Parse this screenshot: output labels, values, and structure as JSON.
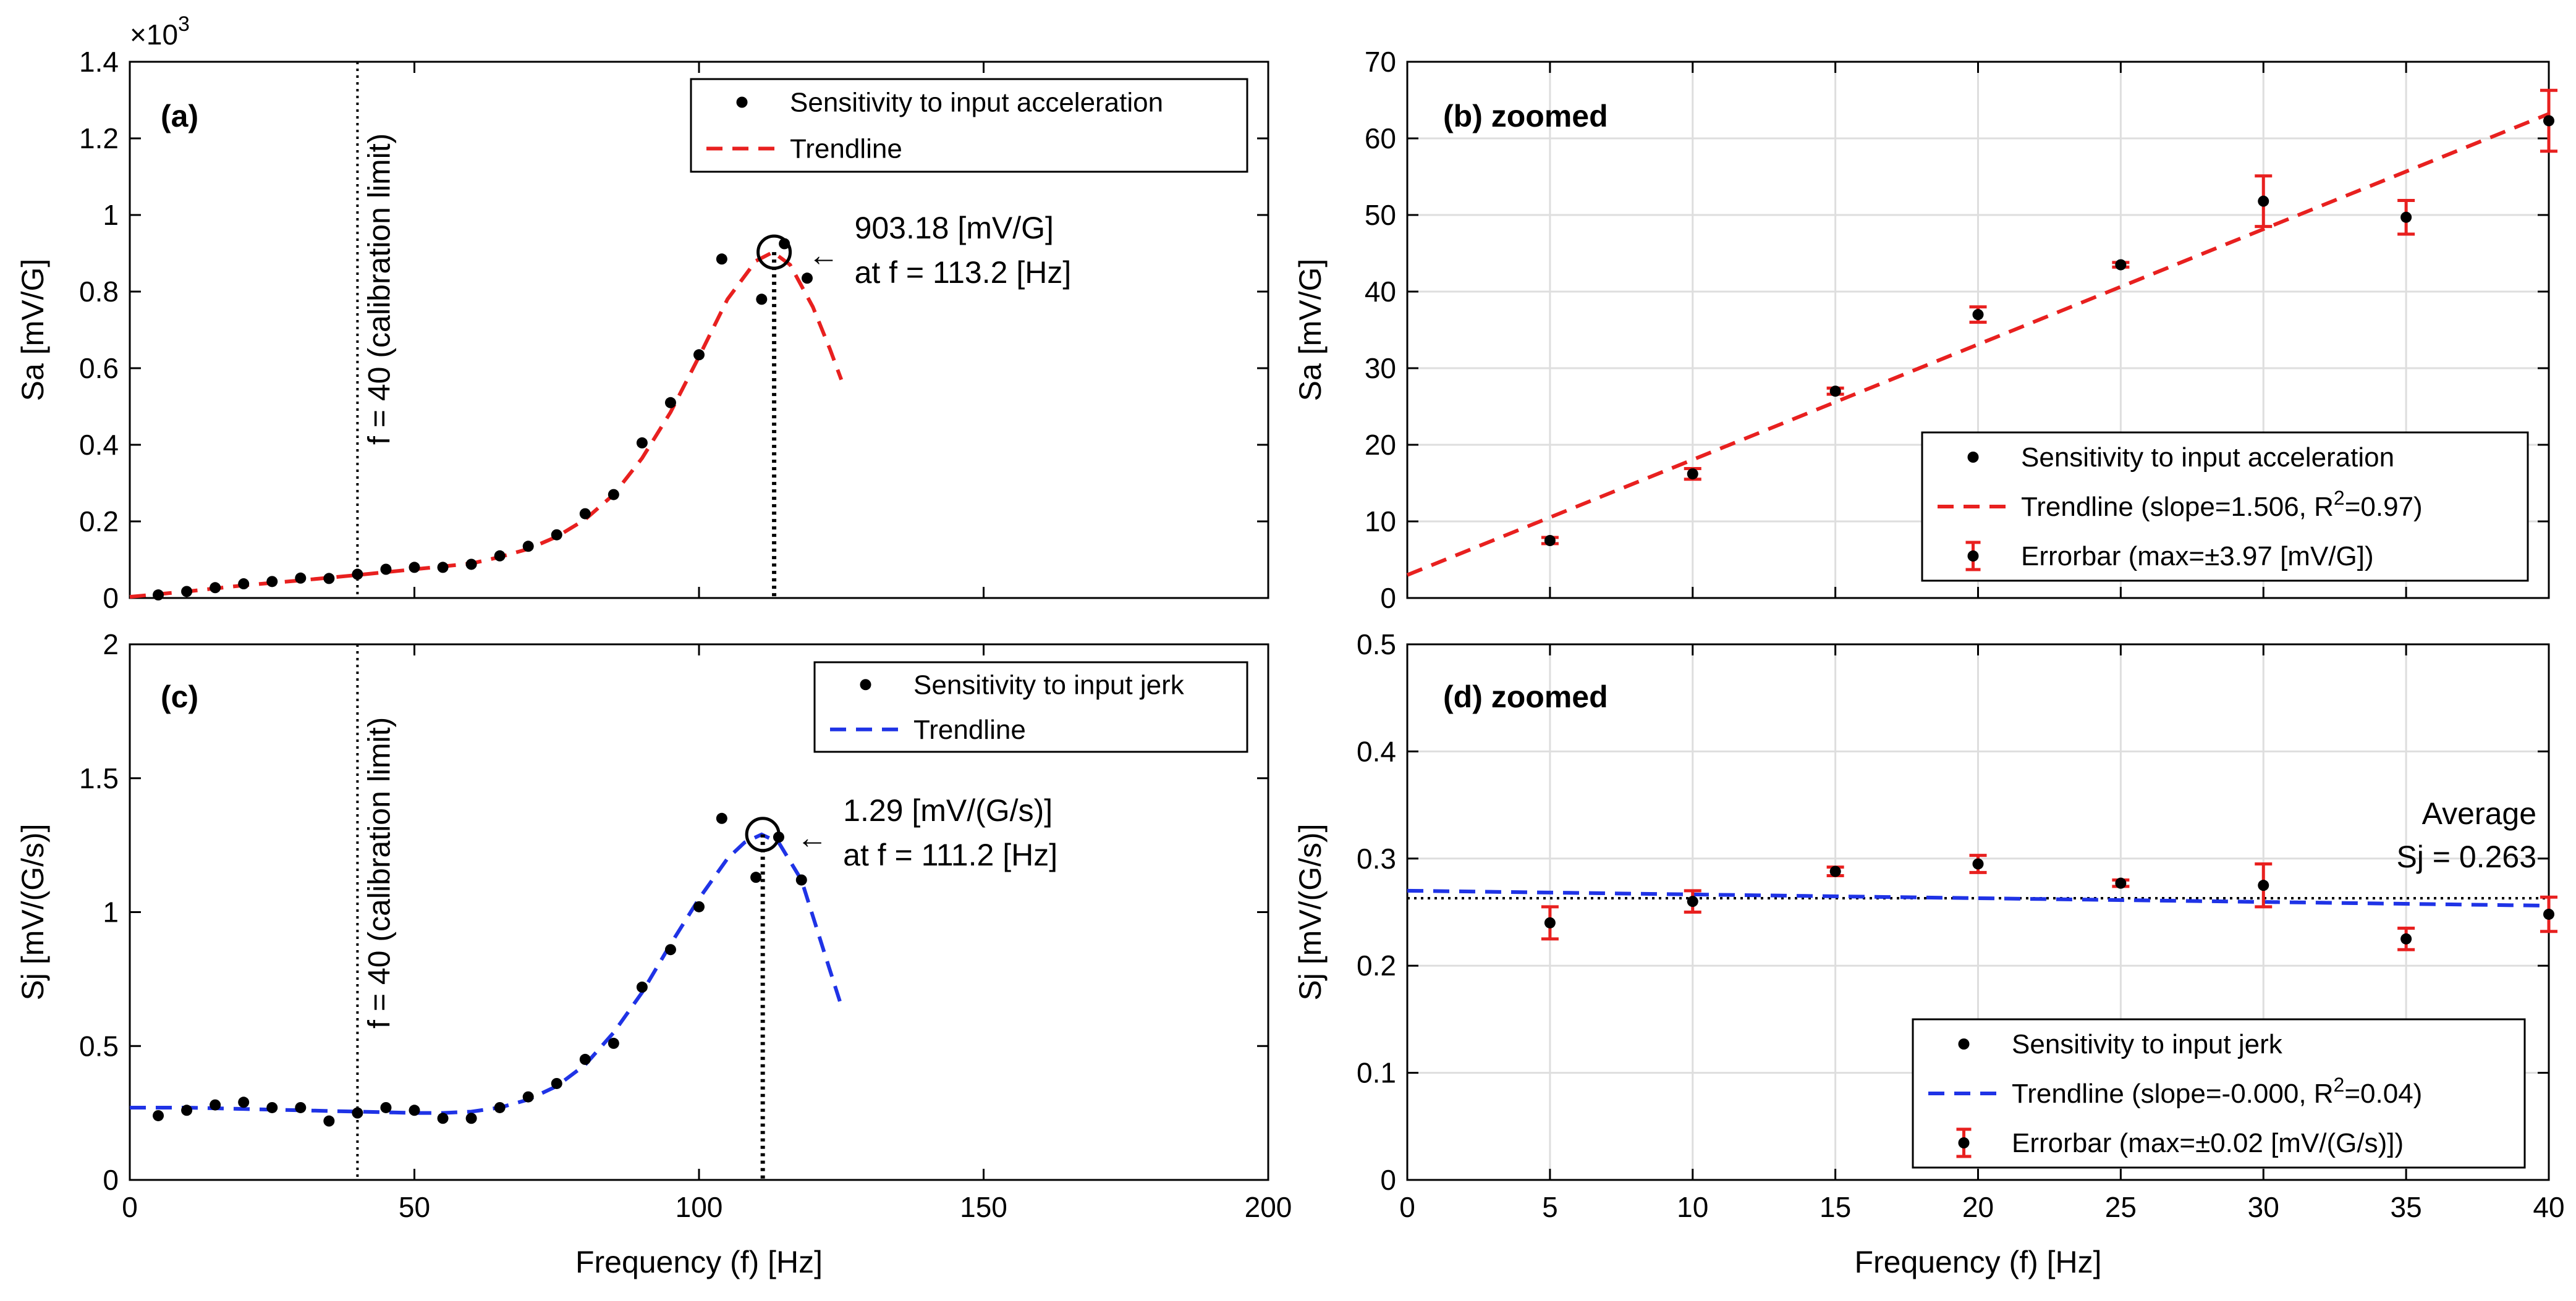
{
  "chart_data": [
    {
      "id": "a",
      "type": "scatter",
      "panel_label": "(a)",
      "xlabel": "",
      "ylabel": "Sa [mV/G]",
      "xlim": [
        0,
        200
      ],
      "ylim": [
        0,
        1.4
      ],
      "xticks": [
        0,
        50,
        100,
        150,
        200
      ],
      "xtick_labels": [
        "",
        "",
        "",
        "",
        ""
      ],
      "yticks": [
        0,
        0.2,
        0.4,
        0.6,
        0.8,
        1,
        1.2,
        1.4
      ],
      "ytick_labels": [
        "0",
        "0.2",
        "0.4",
        "0.6",
        "0.8",
        "1",
        "1.2",
        "1.4"
      ],
      "y_multiplier": "×10",
      "y_multiplier_exp": "3",
      "grid": false,
      "vline": {
        "x": 40,
        "label": "f = 40 (calibration limit)"
      },
      "peak": {
        "x": 113.2,
        "y": 0.903,
        "line1": "903.18 [mV/G]",
        "line2": "at f = 113.2 [Hz]",
        "arrow": "←"
      },
      "series": [
        {
          "name": "Sensitivity to input acceleration",
          "kind": "points",
          "color": "#000000",
          "x": [
            5,
            10,
            15,
            20,
            25,
            30,
            35,
            40,
            45,
            50,
            55,
            60,
            65,
            70,
            75,
            80,
            85,
            90,
            95,
            100,
            104,
            111,
            115,
            119
          ],
          "y": [
            0.008,
            0.017,
            0.027,
            0.037,
            0.043,
            0.052,
            0.051,
            0.062,
            0.075,
            0.08,
            0.08,
            0.088,
            0.11,
            0.135,
            0.165,
            0.22,
            0.27,
            0.405,
            0.51,
            0.635,
            0.885,
            0.78,
            0.925,
            0.835
          ]
        },
        {
          "name": "Trendline",
          "kind": "line",
          "style": "dashed",
          "color": "#e8201f",
          "x": [
            0,
            10,
            20,
            30,
            40,
            50,
            60,
            65,
            70,
            75,
            80,
            85,
            90,
            95,
            100,
            105,
            110,
            113,
            116,
            120,
            123,
            125
          ],
          "y": [
            0.003,
            0.017,
            0.033,
            0.046,
            0.06,
            0.075,
            0.09,
            0.107,
            0.128,
            0.16,
            0.205,
            0.27,
            0.365,
            0.485,
            0.63,
            0.78,
            0.88,
            0.903,
            0.87,
            0.76,
            0.65,
            0.57
          ]
        }
      ]
    },
    {
      "id": "b",
      "type": "scatter",
      "panel_label": "(b) zoomed",
      "xlabel": "",
      "ylabel": "Sa [mV/G]",
      "xlim": [
        0,
        40
      ],
      "ylim": [
        0,
        70
      ],
      "xticks": [
        0,
        5,
        10,
        15,
        20,
        25,
        30,
        35,
        40
      ],
      "xtick_labels": [
        "",
        "",
        "",
        "",
        "",
        "",
        "",
        "",
        ""
      ],
      "yticks": [
        0,
        10,
        20,
        30,
        40,
        50,
        60,
        70
      ],
      "ytick_labels": [
        "0",
        "10",
        "20",
        "30",
        "40",
        "50",
        "60",
        "70"
      ],
      "grid": true,
      "series": [
        {
          "name": "Sensitivity to input acceleration",
          "kind": "points",
          "color": "#000000",
          "x": [
            5,
            10,
            15,
            20,
            25,
            30,
            35,
            40
          ],
          "y": [
            7.5,
            16.2,
            27.0,
            37.0,
            43.5,
            51.8,
            49.7,
            62.3
          ],
          "err": [
            0.4,
            0.7,
            0.4,
            1.0,
            0.3,
            3.3,
            2.2,
            3.97
          ]
        },
        {
          "name": "Trendline (slope=1.506, R",
          "sup": "2",
          "tail": "=0.97)",
          "kind": "line",
          "style": "dashed",
          "color": "#e8201f",
          "x": [
            0,
            40
          ],
          "y": [
            3.0,
            63.2
          ]
        },
        {
          "name": "Errorbar (max=±3.97 [mV/G])",
          "kind": "errorbar",
          "color": "#e8201f"
        }
      ]
    },
    {
      "id": "c",
      "type": "scatter",
      "panel_label": "(c)",
      "xlabel": "Frequency (f) [Hz]",
      "ylabel": "Sj [mV/(G/s)]",
      "xlim": [
        0,
        200
      ],
      "ylim": [
        0,
        2
      ],
      "xticks": [
        0,
        50,
        100,
        150,
        200
      ],
      "xtick_labels": [
        "0",
        "50",
        "100",
        "150",
        "200"
      ],
      "yticks": [
        0,
        0.5,
        1,
        1.5,
        2
      ],
      "ytick_labels": [
        "0",
        "0.5",
        "1",
        "1.5",
        "2"
      ],
      "grid": false,
      "vline": {
        "x": 40,
        "label": "f = 40 (calibration limit)"
      },
      "peak": {
        "x": 111.2,
        "y": 1.29,
        "line1": "1.29 [mV/(G/s)]",
        "line2": "at f = 111.2 [Hz]",
        "arrow": "←"
      },
      "series": [
        {
          "name": "Sensitivity to input jerk",
          "kind": "points",
          "color": "#000000",
          "x": [
            5,
            10,
            15,
            20,
            25,
            30,
            35,
            40,
            45,
            50,
            55,
            60,
            65,
            70,
            75,
            80,
            85,
            90,
            95,
            100,
            104,
            110,
            114,
            118
          ],
          "y": [
            0.24,
            0.26,
            0.28,
            0.29,
            0.27,
            0.27,
            0.22,
            0.25,
            0.27,
            0.26,
            0.23,
            0.23,
            0.27,
            0.31,
            0.36,
            0.45,
            0.51,
            0.72,
            0.86,
            1.02,
            1.35,
            1.13,
            1.28,
            1.12
          ]
        },
        {
          "name": "Trendline",
          "kind": "line",
          "style": "dashed",
          "color": "#1f33e6",
          "x": [
            0,
            10,
            20,
            30,
            40,
            50,
            55,
            60,
            65,
            70,
            75,
            80,
            85,
            90,
            95,
            100,
            105,
            108,
            111,
            114,
            118,
            122,
            125
          ],
          "y": [
            0.27,
            0.27,
            0.265,
            0.26,
            0.255,
            0.25,
            0.25,
            0.255,
            0.27,
            0.3,
            0.35,
            0.43,
            0.55,
            0.7,
            0.88,
            1.05,
            1.2,
            1.26,
            1.29,
            1.26,
            1.12,
            0.85,
            0.65
          ]
        }
      ]
    },
    {
      "id": "d",
      "type": "scatter",
      "panel_label": "(d) zoomed",
      "xlabel": "Frequency (f) [Hz]",
      "ylabel": "Sj [mV/(G/s)]",
      "xlim": [
        0,
        40
      ],
      "ylim": [
        0,
        0.5
      ],
      "xticks": [
        0,
        5,
        10,
        15,
        20,
        25,
        30,
        35,
        40
      ],
      "xtick_labels": [
        "0",
        "5",
        "10",
        "15",
        "20",
        "25",
        "30",
        "35",
        "40"
      ],
      "yticks": [
        0,
        0.1,
        0.2,
        0.3,
        0.4,
        0.5
      ],
      "ytick_labels": [
        "0",
        "0.1",
        "0.2",
        "0.3",
        "0.4",
        "0.5"
      ],
      "grid": true,
      "average": {
        "y": 0.263,
        "line1": "Average",
        "line2": "Sj = 0.263"
      },
      "series": [
        {
          "name": "Sensitivity to input jerk",
          "kind": "points",
          "color": "#000000",
          "x": [
            5,
            10,
            15,
            20,
            25,
            30,
            35,
            40
          ],
          "y": [
            0.24,
            0.26,
            0.288,
            0.295,
            0.277,
            0.275,
            0.225,
            0.248
          ],
          "err": [
            0.015,
            0.01,
            0.004,
            0.008,
            0.003,
            0.02,
            0.01,
            0.016
          ]
        },
        {
          "name": "Trendline (slope=-0.000, R",
          "sup": "2",
          "tail": "=0.04)",
          "kind": "line",
          "style": "dashed",
          "color": "#1f33e6",
          "x": [
            0,
            40
          ],
          "y": [
            0.27,
            0.256
          ]
        },
        {
          "name": "Errorbar (max=±0.02 [mV/(G/s)])",
          "kind": "errorbar",
          "color": "#e8201f"
        }
      ]
    }
  ]
}
